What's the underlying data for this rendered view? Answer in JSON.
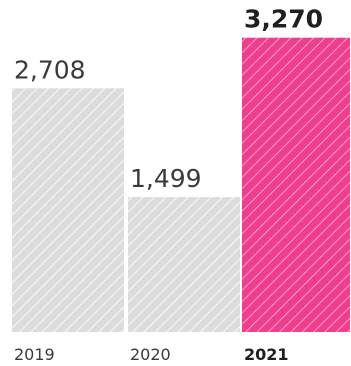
{
  "chart_data": {
    "type": "bar",
    "categories": [
      "2019",
      "2020",
      "2021"
    ],
    "values": [
      2708,
      1499,
      3270
    ],
    "value_labels": [
      "2,708",
      "1,499",
      "3,270"
    ],
    "highlight_index": 2,
    "title": "",
    "xlabel": "",
    "ylabel": "",
    "ylim": [
      0,
      3600
    ],
    "grid": false,
    "legend": "none",
    "colors": {
      "bar": "#dcdcdc",
      "bar_hatch": "#f4f4f4",
      "highlight": "#f03d8d",
      "highlight_hatch": "#f7a2c8",
      "label": "#3a3a3a",
      "highlight_label": "#1f1f1f"
    }
  }
}
